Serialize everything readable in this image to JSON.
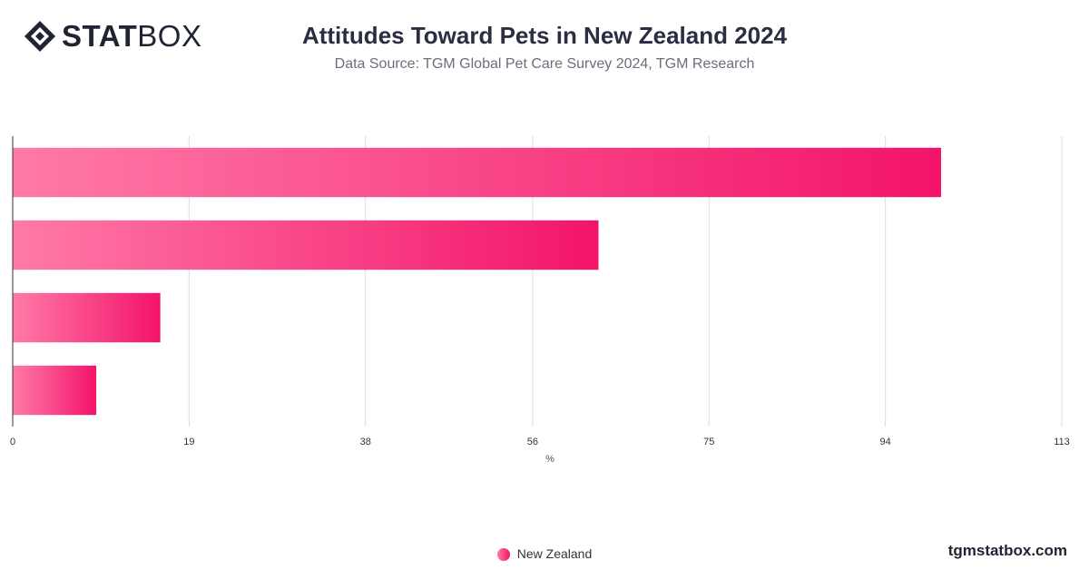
{
  "brand": {
    "logo_bold": "STAT",
    "logo_light": "BOX",
    "website": "tgmstatbox.com"
  },
  "title": "Attitudes Toward Pets in New Zealand 2024",
  "subtitle": "Data Source: TGM Global Pet Care Survey 2024, TGM Research",
  "chart_data": {
    "type": "bar",
    "orientation": "horizontal",
    "categories": [
      "",
      "",
      "",
      ""
    ],
    "series": [
      {
        "name": "New Zealand",
        "values": [
          100,
          63.1,
          15.9,
          9.0
        ]
      }
    ],
    "xlabel": "%",
    "xlim": [
      0,
      113
    ],
    "xticks": [
      0,
      19,
      38,
      56,
      75,
      94,
      113
    ],
    "grid": true,
    "legend_position": "bottom-center",
    "colors": {
      "bar_start": "#ff7aa8",
      "bar_end": "#f3146a",
      "grid": "#dddddd",
      "axis": "#333333"
    }
  },
  "legend": {
    "label": "New Zealand"
  }
}
